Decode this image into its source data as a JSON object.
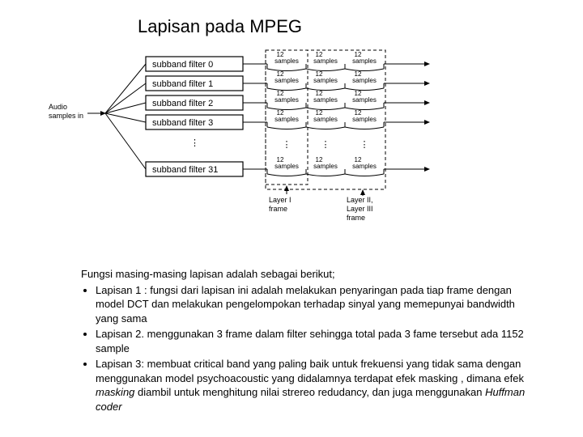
{
  "title": "Lapisan pada MPEG",
  "diagram": {
    "type": "flowchart",
    "input_label_line1": "Audio",
    "input_label_line2": "samples in",
    "filters": [
      "subband filter 0",
      "subband filter 1",
      "subband filter 2",
      "subband filter 3",
      "subband filter 31"
    ],
    "ellipsis": "⋮",
    "sample_block_top": "12",
    "sample_block_bottom": "samples",
    "layer1_label_line1": "Layer I",
    "layer1_label_line2": "frame",
    "layer23_label_line1": "Layer II,",
    "layer23_label_line2": "Layer III",
    "layer23_label_line3": "frame",
    "colors": {
      "stroke": "#000000",
      "fill": "#ffffff",
      "text": "#000000",
      "background": "#ffffff"
    },
    "line_width": 1,
    "filter_box_w": 120,
    "filter_box_h": 18
  },
  "body": {
    "lead": "Fungsi masing-masing lapisan adalah sebagai berikut;",
    "bullets": [
      "Lapisan 1 :  fungsi dari lapisan ini adalah melakukan penyaringan pada tiap frame dengan model DCT dan melakukan pengelompokan terhadap sinyal yang memepunyai bandwidth yang sama",
      "Lapisan 2. menggunakan 3 frame dalam filter sehingga total pada 3 fame tersebut ada 1152 sample",
      "Lapisan 3: membuat critical band yang paling baik untuk frekuensi yang tidak sama dengan menggunakan  model psychoacoustic yang didalamnya terdapat efek masking , dimana efek <i>masking</i> diambil untuk menghitung nilai strereo redudancy, dan juga menggunakan <i>Huffman coder</i>"
    ]
  }
}
